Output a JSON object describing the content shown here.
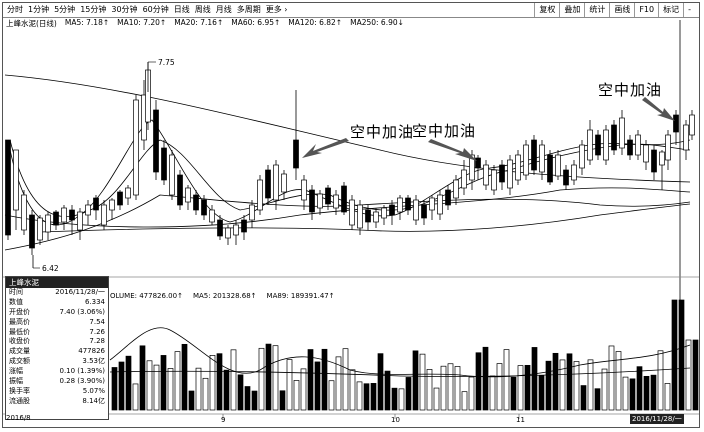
{
  "toolbar": {
    "left_items": [
      "分时",
      "1分钟",
      "5分钟",
      "15分钟",
      "30分钟",
      "60分钟",
      "日线",
      "周线",
      "月线",
      "多周期",
      "更多 ›"
    ],
    "right_items": [
      "复权",
      "叠加",
      "统计",
      "画线",
      "F10",
      "标记",
      "-"
    ]
  },
  "legend": {
    "name": "上峰水泥(日线)",
    "ma5": "MA5: 7.18↑",
    "ma10": "MA10: 7.20↑",
    "ma20": "MA20: 7.16↑",
    "ma60": "MA60: 6.95↑",
    "ma120": "MA120: 6.82↑",
    "ma250": "MA250: 6.90↓"
  },
  "chart_labels": {
    "high": "7.75",
    "low": "6.42"
  },
  "annotations": [
    "空中加油",
    "空中加油",
    "空中加油"
  ],
  "info_panel": {
    "title": "上峰水泥",
    "rows": [
      {
        "label": "时间",
        "value": "2016/11/28/一"
      },
      {
        "label": "数值",
        "value": "6.334"
      },
      {
        "label": "开盘价",
        "value": "7.40 (3.06%)"
      },
      {
        "label": "最高价",
        "value": "7.54"
      },
      {
        "label": "最低价",
        "value": "7.26"
      },
      {
        "label": "收盘价",
        "value": "7.28"
      },
      {
        "label": "成交量",
        "value": "477826"
      },
      {
        "label": "成交额",
        "value": "3.53亿"
      },
      {
        "label": "涨幅",
        "value": "0.10 (1.39%)"
      },
      {
        "label": "振幅",
        "value": "0.28 (3.90%)"
      },
      {
        "label": "换手率",
        "value": "5.07%"
      },
      {
        "label": "流通股",
        "value": "8.14亿"
      }
    ]
  },
  "volume_legend": {
    "volume": "OLUME: 477826.00↑",
    "ma5": "MA5: 201328.68↑",
    "ma89": "MA89: 189391.47↑"
  },
  "date_axis": {
    "start": "2016/8",
    "m9": "9",
    "m10": "10",
    "m11": "11",
    "end": "2016/11/28/一"
  }
}
